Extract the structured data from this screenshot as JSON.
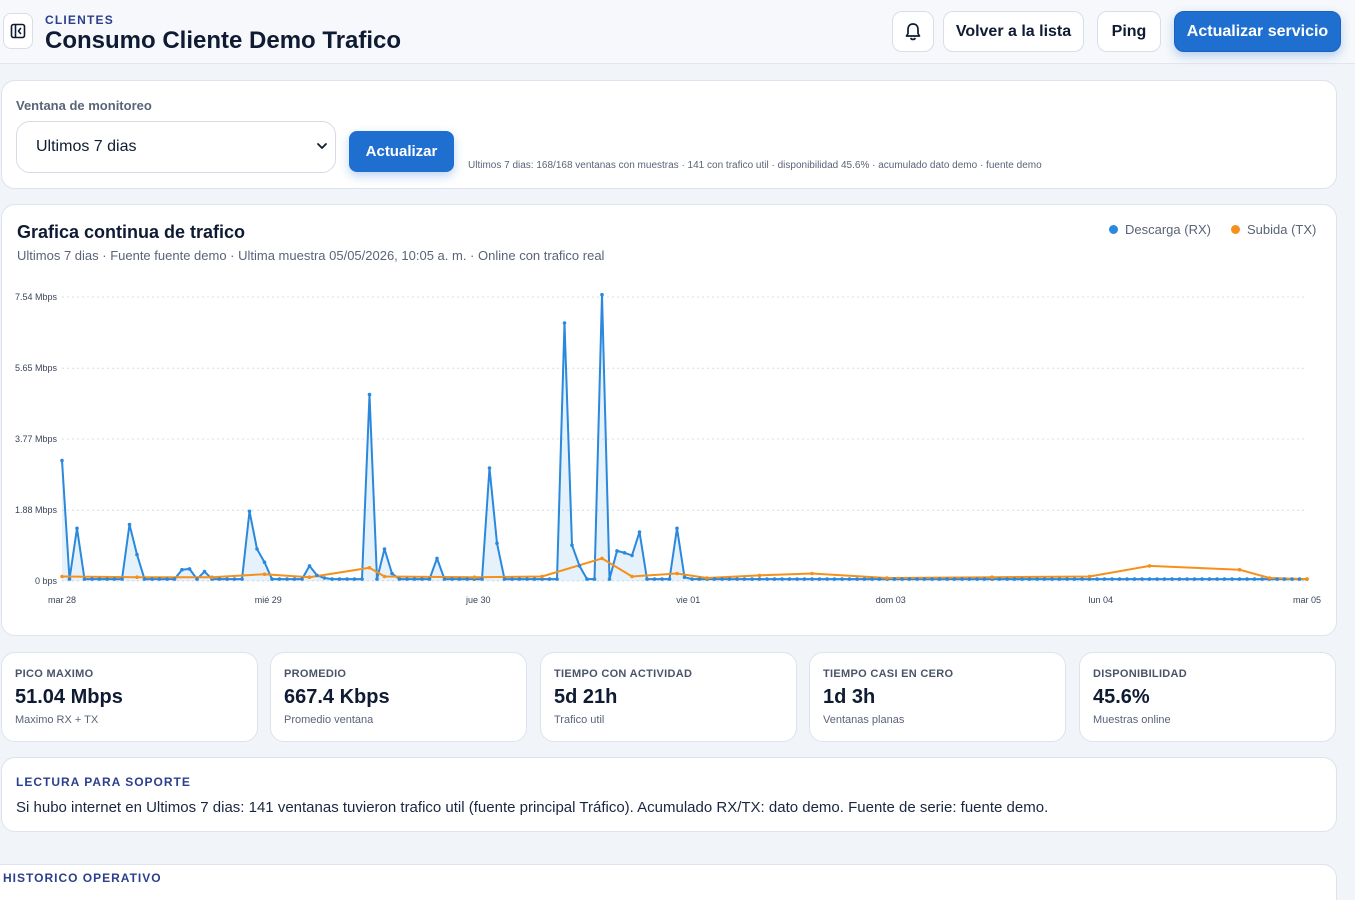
{
  "header": {
    "kicker": "CLIENTES",
    "title": "Consumo Cliente Demo Trafico",
    "back_label": "Volver a la lista",
    "ping_label": "Ping",
    "update_service_label": "Actualizar servicio"
  },
  "monitor": {
    "label": "Ventana de monitoreo",
    "selected": "Ultimos 7 dias",
    "button": "Actualizar",
    "info": "Ultimos 7 dias: 168/168 ventanas con muestras · 141 con trafico util · disponibilidad 45.6% · acumulado dato demo · fuente demo"
  },
  "chart": {
    "title": "Grafica continua de trafico",
    "subtitle": "Ultimos 7 dias · Fuente fuente demo · Ultima muestra 05/05/2026, 10:05 a. m. · Online con trafico real"
  },
  "chart_data": {
    "type": "area",
    "title": "Grafica continua de trafico",
    "x_range": [
      "mar 28",
      "mar 05"
    ],
    "x_tick_labels": [
      "mar 28",
      "mié 29",
      "jue 30",
      "vie 01",
      "dom 03",
      "lun 04",
      "mar 05"
    ],
    "x_tick_positions": [
      0,
      27.5,
      55.5,
      83.5,
      110.5,
      138.5,
      166
    ],
    "y_tick_labels": [
      "0 bps",
      "1.88 Mbps",
      "3.77 Mbps",
      "5.65 Mbps",
      "7.54 Mbps"
    ],
    "y_tick_values": [
      0,
      1.88,
      3.77,
      5.65,
      7.54
    ],
    "ylim": [
      0,
      7.54
    ],
    "y_unit": "Mbps",
    "grid": true,
    "legend_position": "top-right",
    "series": [
      {
        "name": "Descarga (RX)",
        "color": "#2a88dd",
        "points": [
          [
            0,
            3.2
          ],
          [
            1,
            0.05
          ],
          [
            2,
            1.4
          ],
          [
            3,
            0.05
          ],
          [
            4,
            0.05
          ],
          [
            5,
            0.05
          ],
          [
            6,
            0.05
          ],
          [
            7,
            0.05
          ],
          [
            8,
            0.05
          ],
          [
            9,
            1.5
          ],
          [
            10,
            0.7
          ],
          [
            11,
            0.05
          ],
          [
            12,
            0.05
          ],
          [
            13,
            0.05
          ],
          [
            14,
            0.05
          ],
          [
            15,
            0.05
          ],
          [
            16,
            0.3
          ],
          [
            17,
            0.32
          ],
          [
            18,
            0.05
          ],
          [
            19,
            0.25
          ],
          [
            20,
            0.05
          ],
          [
            21,
            0.05
          ],
          [
            22,
            0.05
          ],
          [
            23,
            0.05
          ],
          [
            24,
            0.05
          ],
          [
            25,
            1.85
          ],
          [
            26,
            0.85
          ],
          [
            27,
            0.5
          ],
          [
            28,
            0.05
          ],
          [
            29,
            0.05
          ],
          [
            30,
            0.05
          ],
          [
            31,
            0.05
          ],
          [
            32,
            0.05
          ],
          [
            33,
            0.4
          ],
          [
            34,
            0.15
          ],
          [
            35,
            0.08
          ],
          [
            36,
            0.05
          ],
          [
            37,
            0.05
          ],
          [
            38,
            0.05
          ],
          [
            39,
            0.05
          ],
          [
            40,
            0.05
          ],
          [
            41,
            4.95
          ],
          [
            42,
            0.05
          ],
          [
            43,
            0.85
          ],
          [
            44,
            0.2
          ],
          [
            45,
            0.05
          ],
          [
            46,
            0.05
          ],
          [
            47,
            0.05
          ],
          [
            48,
            0.05
          ],
          [
            49,
            0.05
          ],
          [
            50,
            0.6
          ],
          [
            51,
            0.05
          ],
          [
            52,
            0.05
          ],
          [
            53,
            0.05
          ],
          [
            54,
            0.05
          ],
          [
            55,
            0.05
          ],
          [
            56,
            0.05
          ],
          [
            57,
            3.0
          ],
          [
            58,
            1.0
          ],
          [
            59,
            0.05
          ],
          [
            60,
            0.05
          ],
          [
            61,
            0.05
          ],
          [
            62,
            0.05
          ],
          [
            63,
            0.05
          ],
          [
            64,
            0.05
          ],
          [
            65,
            0.05
          ],
          [
            66,
            0.05
          ],
          [
            67,
            6.85
          ],
          [
            68,
            0.95
          ],
          [
            69,
            0.4
          ],
          [
            70,
            0.05
          ],
          [
            71,
            0.05
          ],
          [
            72,
            7.6
          ],
          [
            73,
            0.05
          ],
          [
            74,
            0.8
          ],
          [
            75,
            0.75
          ],
          [
            76,
            0.68
          ],
          [
            77,
            1.3
          ],
          [
            78,
            0.05
          ],
          [
            79,
            0.05
          ],
          [
            80,
            0.05
          ],
          [
            81,
            0.05
          ],
          [
            82,
            1.4
          ],
          [
            83,
            0.1
          ],
          [
            84,
            0.05
          ],
          [
            85,
            0.05
          ],
          [
            86,
            0.05
          ],
          [
            87,
            0.05
          ],
          [
            88,
            0.05
          ],
          [
            89,
            0.05
          ],
          [
            90,
            0.05
          ],
          [
            91,
            0.05
          ],
          [
            92,
            0.05
          ],
          [
            93,
            0.05
          ],
          [
            94,
            0.05
          ],
          [
            95,
            0.05
          ],
          [
            96,
            0.05
          ],
          [
            97,
            0.05
          ],
          [
            98,
            0.05
          ],
          [
            99,
            0.05
          ],
          [
            100,
            0.05
          ],
          [
            101,
            0.05
          ],
          [
            102,
            0.05
          ],
          [
            103,
            0.05
          ],
          [
            104,
            0.05
          ],
          [
            105,
            0.05
          ],
          [
            106,
            0.05
          ],
          [
            107,
            0.05
          ],
          [
            108,
            0.05
          ],
          [
            109,
            0.05
          ],
          [
            110,
            0.05
          ],
          [
            111,
            0.05
          ],
          [
            112,
            0.05
          ],
          [
            113,
            0.05
          ],
          [
            114,
            0.05
          ],
          [
            115,
            0.05
          ],
          [
            116,
            0.05
          ],
          [
            117,
            0.05
          ],
          [
            118,
            0.05
          ],
          [
            119,
            0.05
          ],
          [
            120,
            0.05
          ],
          [
            121,
            0.05
          ],
          [
            122,
            0.05
          ],
          [
            123,
            0.05
          ],
          [
            124,
            0.05
          ],
          [
            125,
            0.05
          ],
          [
            126,
            0.05
          ],
          [
            127,
            0.05
          ],
          [
            128,
            0.05
          ],
          [
            129,
            0.05
          ],
          [
            130,
            0.05
          ],
          [
            131,
            0.05
          ],
          [
            132,
            0.05
          ],
          [
            133,
            0.05
          ],
          [
            134,
            0.05
          ],
          [
            135,
            0.05
          ],
          [
            136,
            0.05
          ],
          [
            137,
            0.05
          ],
          [
            138,
            0.05
          ],
          [
            139,
            0.05
          ],
          [
            140,
            0.05
          ],
          [
            141,
            0.05
          ],
          [
            142,
            0.05
          ],
          [
            143,
            0.05
          ],
          [
            144,
            0.05
          ],
          [
            145,
            0.05
          ],
          [
            146,
            0.05
          ],
          [
            147,
            0.05
          ],
          [
            148,
            0.05
          ],
          [
            149,
            0.05
          ],
          [
            150,
            0.05
          ],
          [
            151,
            0.05
          ],
          [
            152,
            0.05
          ],
          [
            153,
            0.05
          ],
          [
            154,
            0.05
          ],
          [
            155,
            0.05
          ],
          [
            156,
            0.05
          ],
          [
            157,
            0.05
          ],
          [
            158,
            0.05
          ],
          [
            159,
            0.05
          ],
          [
            160,
            0.05
          ],
          [
            161,
            0.05
          ],
          [
            162,
            0.05
          ],
          [
            163,
            0.05
          ],
          [
            164,
            0.05
          ],
          [
            165,
            0.05
          ],
          [
            166,
            0.05
          ]
        ]
      },
      {
        "name": "Subida (TX)",
        "color": "#f5901c",
        "points": [
          [
            0,
            0.12
          ],
          [
            10,
            0.1
          ],
          [
            20,
            0.1
          ],
          [
            27,
            0.18
          ],
          [
            33,
            0.1
          ],
          [
            41,
            0.35
          ],
          [
            43,
            0.12
          ],
          [
            55,
            0.1
          ],
          [
            64,
            0.12
          ],
          [
            72,
            0.6
          ],
          [
            76,
            0.12
          ],
          [
            82,
            0.2
          ],
          [
            86,
            0.08
          ],
          [
            93,
            0.15
          ],
          [
            100,
            0.2
          ],
          [
            110,
            0.08
          ],
          [
            124,
            0.1
          ],
          [
            137,
            0.12
          ],
          [
            145,
            0.4
          ],
          [
            157,
            0.3
          ],
          [
            161,
            0.08
          ],
          [
            166,
            0.05
          ]
        ]
      }
    ]
  },
  "stats": [
    {
      "label": "PICO MAXIMO",
      "value": "51.04 Mbps",
      "sub": "Maximo RX + TX"
    },
    {
      "label": "PROMEDIO",
      "value": "667.4 Kbps",
      "sub": "Promedio ventana"
    },
    {
      "label": "TIEMPO CON ACTIVIDAD",
      "value": "5d 21h",
      "sub": "Trafico util"
    },
    {
      "label": "TIEMPO CASI EN CERO",
      "value": "1d 3h",
      "sub": "Ventanas planas"
    },
    {
      "label": "DISPONIBILIDAD",
      "value": "45.6%",
      "sub": "Muestras online"
    }
  ],
  "support": {
    "title": "LECTURA PARA SOPORTE",
    "text": "Si hubo internet en Ultimos 7 dias: 141 ventanas tuvieron trafico util (fuente principal Tráfico). Acumulado RX/TX: dato demo. Fuente de serie: fuente demo."
  },
  "history": {
    "title": "HISTORICO OPERATIVO"
  }
}
